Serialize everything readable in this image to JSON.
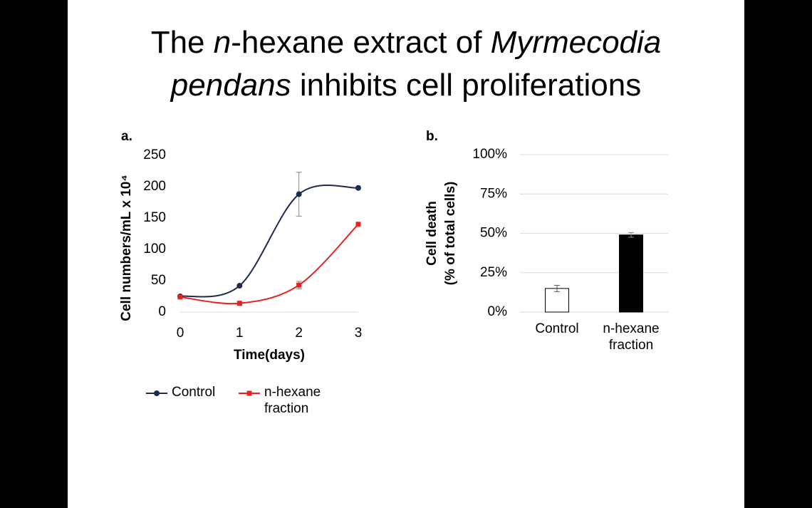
{
  "title_lines": [
    [
      {
        "text": "The ",
        "italic": false
      },
      {
        "text": "n",
        "italic": true
      },
      {
        "text": "-hexane extract of ",
        "italic": false
      },
      {
        "text": "Myrmecodia",
        "italic": true
      }
    ],
    [
      {
        "text": "pendans",
        "italic": true
      },
      {
        "text": " inhibits cell proliferations",
        "italic": false
      }
    ]
  ],
  "chart_data": [
    {
      "type": "line",
      "panel": "a.",
      "xlabel": "Time(days)",
      "ylabel": "Cell numbers/mL x 10⁴",
      "x": [
        0,
        1,
        2,
        3
      ],
      "xlim": [
        0,
        3
      ],
      "xticks": [
        0,
        1,
        2,
        3
      ],
      "ylim": [
        0,
        250
      ],
      "yticks": [
        0,
        50,
        100,
        150,
        200,
        250
      ],
      "smooth": true,
      "series": [
        {
          "name": "Control",
          "color": "#1f2a4f",
          "marker": "circle",
          "values": [
            25,
            42,
            188,
            198
          ],
          "errors": [
            null,
            null,
            35,
            null
          ]
        },
        {
          "name": "n-hexane fraction",
          "color": "#e8201e",
          "marker": "square",
          "values": [
            24,
            14,
            43,
            140
          ],
          "errors": [
            null,
            null,
            6,
            null
          ]
        }
      ]
    },
    {
      "type": "bar",
      "panel": "b.",
      "ylabel": [
        "Cell death",
        "(% of total cells)"
      ],
      "categories": [
        "Control",
        "n-hexane fraction"
      ],
      "values": [
        15,
        49
      ],
      "errors": [
        2,
        1.5
      ],
      "colors": [
        "#ffffff",
        "#000000"
      ],
      "edgecolor": "#000000",
      "ylim": [
        0,
        100
      ],
      "grid": true,
      "yticks": [
        {
          "value": 0,
          "label": "0%"
        },
        {
          "value": 25,
          "label": "25%"
        },
        {
          "value": 50,
          "label": "50%"
        },
        {
          "value": 75,
          "label": "75%"
        },
        {
          "value": 100,
          "label": "100%"
        }
      ]
    }
  ]
}
